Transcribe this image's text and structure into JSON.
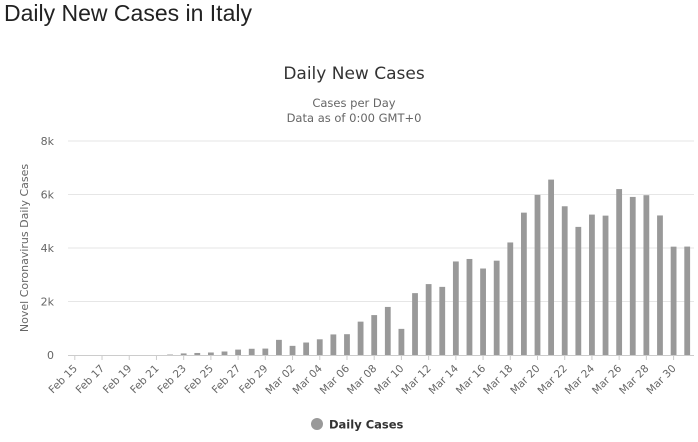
{
  "page": {
    "title": "Daily New Cases in Italy"
  },
  "chart_data": {
    "type": "bar",
    "title": "Daily New Cases",
    "subtitle_line1": "Cases per Day",
    "subtitle_line2": "Data as of 0:00 GMT+0",
    "ylabel": "Novel Coronavirus Daily Cases",
    "xlabel": "",
    "ylim": [
      0,
      8000
    ],
    "yticks": [
      {
        "value": 0,
        "label": "0"
      },
      {
        "value": 2000,
        "label": "2k"
      },
      {
        "value": 4000,
        "label": "4k"
      },
      {
        "value": 6000,
        "label": "6k"
      },
      {
        "value": 8000,
        "label": "8k"
      }
    ],
    "grid": true,
    "legend_position": "bottom",
    "categories": [
      "Feb 15",
      "Feb 16",
      "Feb 17",
      "Feb 18",
      "Feb 19",
      "Feb 20",
      "Feb 21",
      "Feb 22",
      "Feb 23",
      "Feb 24",
      "Feb 25",
      "Feb 26",
      "Feb 27",
      "Feb 28",
      "Feb 29",
      "Mar 01",
      "Mar 02",
      "Mar 03",
      "Mar 04",
      "Mar 05",
      "Mar 06",
      "Mar 07",
      "Mar 08",
      "Mar 09",
      "Mar 10",
      "Mar 11",
      "Mar 12",
      "Mar 13",
      "Mar 14",
      "Mar 15",
      "Mar 16",
      "Mar 17",
      "Mar 18",
      "Mar 19",
      "Mar 20",
      "Mar 21",
      "Mar 22",
      "Mar 23",
      "Mar 24",
      "Mar 25",
      "Mar 26",
      "Mar 27",
      "Mar 28",
      "Mar 29",
      "Mar 30",
      "Mar 31"
    ],
    "tick_labels": [
      "Feb 15",
      "Feb 17",
      "Feb 19",
      "Feb 21",
      "Feb 23",
      "Feb 25",
      "Feb 27",
      "Feb 29",
      "Mar 02",
      "Mar 04",
      "Mar 06",
      "Mar 08",
      "Mar 10",
      "Mar 12",
      "Mar 14",
      "Mar 16",
      "Mar 18",
      "Mar 20",
      "Mar 22",
      "Mar 24",
      "Mar 26",
      "Mar 28",
      "Mar 30"
    ],
    "series": [
      {
        "name": "Daily Cases",
        "color": "#999999",
        "values": [
          0,
          0,
          0,
          0,
          0,
          0,
          0,
          17,
          59,
          76,
          93,
          131,
          202,
          233,
          240,
          566,
          342,
          466,
          587,
          769,
          778,
          1247,
          1492,
          1797,
          977,
          2313,
          2651,
          2547,
          3497,
          3590,
          3233,
          3526,
          4207,
          5322,
          5986,
          6557,
          5560,
          4789,
          5249,
          5210,
          6203,
          5909,
          5974,
          5217,
          4050,
          4053
        ]
      }
    ],
    "colors": {
      "bar": "#999999",
      "grid": "#e6e6e6",
      "text": "#666666",
      "title": "#333333"
    }
  }
}
